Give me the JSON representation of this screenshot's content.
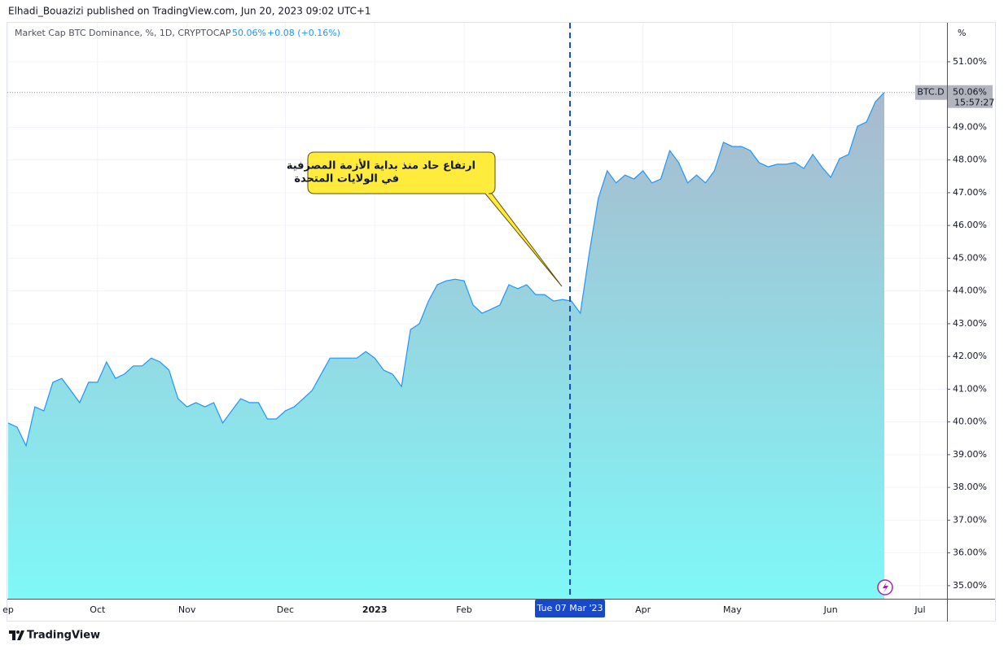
{
  "publisher": "Elhadi_Bouazizi published on TradingView.com, Jun 20, 2023 09:02 UTC+1",
  "footer_brand": "TradingView",
  "chart_data": {
    "type": "area",
    "title": "Market Cap BTC Dominance, %, 1D, CRYPTOCAP",
    "last_value": "50.06%",
    "change": "+0.08 (+0.16%)",
    "unit_label": "%",
    "categories": [
      "ep",
      null,
      null,
      null,
      null,
      null,
      null,
      null,
      null,
      null,
      "Oct",
      null,
      null,
      null,
      null,
      null,
      null,
      null,
      null,
      null,
      "Nov",
      null,
      null,
      null,
      null,
      null,
      null,
      null,
      null,
      null,
      null,
      "Dec",
      null,
      null,
      null,
      null,
      null,
      null,
      null,
      null,
      null,
      "2023",
      null,
      null,
      null,
      null,
      null,
      null,
      null,
      null,
      null,
      "Feb",
      null,
      null,
      null,
      null,
      null,
      null,
      null,
      null,
      null,
      null,
      null,
      null,
      null,
      null,
      null,
      null,
      null,
      null,
      null,
      "Apr",
      null,
      null,
      null,
      null,
      null,
      null,
      null,
      null,
      null,
      "May",
      null,
      null,
      null,
      null,
      null,
      null,
      null,
      null,
      null,
      null,
      "Jun",
      null,
      null,
      null,
      null,
      null,
      null,
      null,
      null,
      null,
      "Jul"
    ],
    "series": [
      {
        "name": "BTC.D",
        "color": "#2196f3",
        "area_top_color": "#a9b9cd",
        "area_bottom_color": "#7ff8f8",
        "values": [
          39.97,
          39.84,
          39.27,
          40.46,
          40.34,
          41.21,
          41.33,
          40.96,
          40.59,
          41.21,
          41.21,
          41.83,
          41.33,
          41.46,
          41.71,
          41.71,
          41.95,
          41.83,
          41.58,
          40.71,
          40.46,
          40.59,
          40.46,
          40.59,
          39.97,
          40.34,
          40.71,
          40.59,
          40.59,
          40.09,
          40.09,
          40.34,
          40.46,
          40.71,
          40.96,
          41.46,
          41.95,
          41.95,
          41.95,
          41.95,
          42.15,
          41.95,
          41.58,
          41.46,
          41.08,
          42.82,
          43.0,
          43.69,
          44.19,
          44.31,
          44.36,
          44.31,
          43.57,
          43.32,
          43.44,
          43.57,
          44.19,
          44.07,
          44.19,
          43.89,
          43.89,
          43.69,
          43.74,
          43.69,
          43.32,
          45.16,
          46.82,
          47.67,
          47.3,
          47.54,
          47.42,
          47.67,
          47.3,
          47.42,
          48.29,
          47.92,
          47.3,
          47.54,
          47.3,
          47.67,
          48.54,
          48.41,
          48.41,
          48.29,
          47.92,
          47.79,
          47.87,
          47.87,
          47.92,
          47.74,
          48.17,
          47.79,
          47.47,
          48.04,
          48.17,
          49.03,
          49.16,
          49.78,
          50.06,
          null,
          null,
          null,
          null
        ]
      }
    ],
    "ylim": [
      34.6,
      52.14
    ],
    "yticks": [
      {
        "value": 35,
        "label": "35.00%"
      },
      {
        "value": 36,
        "label": "36.00%"
      },
      {
        "value": 37,
        "label": "37.00%"
      },
      {
        "value": 38,
        "label": "38.00%"
      },
      {
        "value": 39,
        "label": "39.00%"
      },
      {
        "value": 40,
        "label": "40.00%"
      },
      {
        "value": 41,
        "label": "41.00%"
      },
      {
        "value": 42,
        "label": "42.00%"
      },
      {
        "value": 43,
        "label": "43.00%"
      },
      {
        "value": 44,
        "label": "44.00%"
      },
      {
        "value": 45,
        "label": "45.00%"
      },
      {
        "value": 46,
        "label": "46.00%"
      },
      {
        "value": 47,
        "label": "47.00%"
      },
      {
        "value": 48,
        "label": "48.00%"
      },
      {
        "value": 49,
        "label": "49.00%"
      },
      {
        "value": 50,
        "label": "50.00%"
      },
      {
        "value": 51,
        "label": "51.00%"
      }
    ],
    "grid": true,
    "price_label": {
      "symbol": "BTC.D",
      "value_label": "50.06%",
      "countdown": "15:57:27"
    },
    "crosshair_label": "Tue 07 Mar '23",
    "annotation": {
      "lines": [
        "ارتفاع حاد منذ بداية الأزمة المصرفية",
        "في الولايات المتحدة"
      ]
    }
  }
}
